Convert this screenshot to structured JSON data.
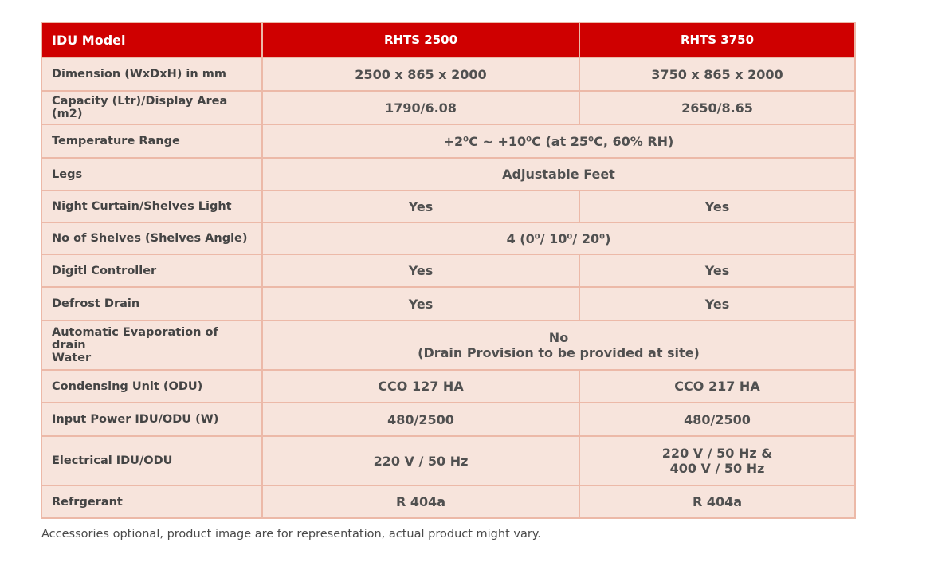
{
  "header": {
    "col0": "IDU Model",
    "col1": "RHTS 2500",
    "col2": "RHTS 3750"
  },
  "rows": [
    {
      "label": "Dimension (WxDxH) in mm",
      "v1": "2500 x 865 x 2000",
      "v2": "3750 x 865 x 2000"
    },
    {
      "label": "Capacity (Ltr)/Display Area (m2)",
      "v1": "1790/6.08",
      "v2": "2650/8.65"
    },
    {
      "label": "Temperature Range",
      "merged": "+2⁰C ~ +10⁰C (at 25⁰C, 60% RH)"
    },
    {
      "label": "Legs",
      "merged": "Adjustable Feet"
    },
    {
      "label": "Night Curtain/Shelves Light",
      "v1": "Yes",
      "v2": "Yes"
    },
    {
      "label": "No of Shelves (Shelves Angle)",
      "merged": "4 (0⁰/ 10⁰/ 20⁰)"
    },
    {
      "label": "Digitl Controller",
      "v1": "Yes",
      "v2": "Yes"
    },
    {
      "label": "Defrost Drain",
      "v1": "Yes",
      "v2": "Yes"
    },
    {
      "label_line1": "Automatic Evaporation of drain",
      "label_line2": "Water",
      "merged_line1": "No",
      "merged_line2": "(Drain Provision to be provided at site)"
    },
    {
      "label": "Condensing Unit (ODU)",
      "v1": "CCO 127 HA",
      "v2": "CCO 217 HA"
    },
    {
      "label": "Input Power IDU/ODU (W)",
      "v1": "480/2500",
      "v2": "480/2500"
    },
    {
      "label": "Electrical IDU/ODU",
      "v1": "220 V / 50 Hz",
      "v2_line1": "220 V / 50 Hz &",
      "v2_line2": "400 V / 50 Hz"
    },
    {
      "label": "Refrgerant",
      "v1": "R 404a",
      "v2": "R 404a"
    }
  ],
  "footnote": "Accessories optional, product image are for representation, actual product might vary.",
  "colors": {
    "header_bg": "#cf0000",
    "row_bg": "#f7e4dc",
    "border": "#ecb9a8"
  }
}
